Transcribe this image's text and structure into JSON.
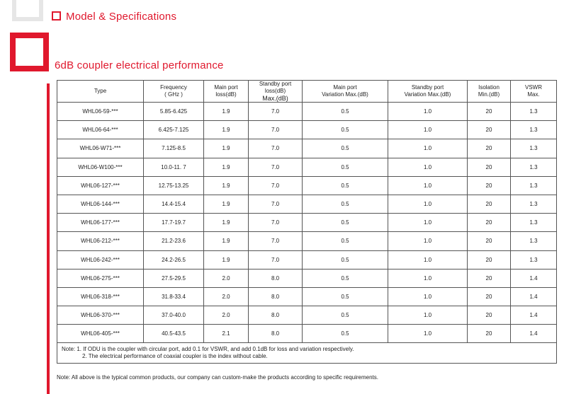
{
  "sections": {
    "model_title": "Model & Specifications",
    "subsection_title": "6dB coupler electrical performance"
  },
  "table": {
    "headers": [
      [
        "Type"
      ],
      [
        "Frequency",
        "( GHz )"
      ],
      [
        "Main port",
        "loss(dB)"
      ],
      [
        "Standby port loss(dB)",
        "Max.(dB)"
      ],
      [
        "Main port",
        "Variation Max.(dB)"
      ],
      [
        "Standby port",
        "Variation Max.(dB)"
      ],
      [
        "Isolation",
        "Min.(dB)"
      ],
      [
        "VSWR",
        "Max."
      ]
    ],
    "rows": [
      [
        "WHL06-59-***",
        "5.85-6.425",
        "1.9",
        "7.0",
        "0.5",
        "1.0",
        "20",
        "1.3"
      ],
      [
        "WHL06-64-***",
        "6.425-7.125",
        "1.9",
        "7.0",
        "0.5",
        "1.0",
        "20",
        "1.3"
      ],
      [
        "WHL06-W71-***",
        "7.125-8.5",
        "1.9",
        "7.0",
        "0.5",
        "1.0",
        "20",
        "1.3"
      ],
      [
        "WHL06-W100-***",
        "10.0-11. 7",
        "1.9",
        "7.0",
        "0.5",
        "1.0",
        "20",
        "1.3"
      ],
      [
        "WHL06-127-***",
        "12.75-13.25",
        "1.9",
        "7.0",
        "0.5",
        "1.0",
        "20",
        "1.3"
      ],
      [
        "WHL06-144-***",
        "14.4-15.4",
        "1.9",
        "7.0",
        "0.5",
        "1.0",
        "20",
        "1.3"
      ],
      [
        "WHL06-177-***",
        "17.7-19.7",
        "1.9",
        "7.0",
        "0.5",
        "1.0",
        "20",
        "1.3"
      ],
      [
        "WHL06-212-***",
        "21.2-23.6",
        "1.9",
        "7.0",
        "0.5",
        "1.0",
        "20",
        "1.3"
      ],
      [
        "WHL06-242-***",
        "24.2-26.5",
        "1.9",
        "7.0",
        "0.5",
        "1.0",
        "20",
        "1.3"
      ],
      [
        "WHL06-275-***",
        "27.5-29.5",
        "2.0",
        "8.0",
        "0.5",
        "1.0",
        "20",
        "1.4"
      ],
      [
        "WHL06-318-***",
        "31.8-33.4",
        "2.0",
        "8.0",
        "0.5",
        "1.0",
        "20",
        "1.4"
      ],
      [
        "WHL06-370-***",
        "37.0-40.0",
        "2.0",
        "8.0",
        "0.5",
        "1.0",
        "20",
        "1.4"
      ],
      [
        "WHL06-405-***",
        "40.5-43.5",
        "2.1",
        "8.0",
        "0.5",
        "1.0",
        "20",
        "1.4"
      ]
    ],
    "note_line1": "Note: 1. If ODU is the coupler with circular port, add 0.1 for VSWR, and add 0.1dB for loss and  variation respectively.",
    "note_line2": "2. The electrical performance of coaxial coupler is the index without cable."
  },
  "footer_note": "Note: All above is the typical common products, our company can custom-make the products according to specific requirements.",
  "colors": {
    "accent": "#e0182d",
    "border": "#555555",
    "decor_gray": "#e6e6e6"
  }
}
